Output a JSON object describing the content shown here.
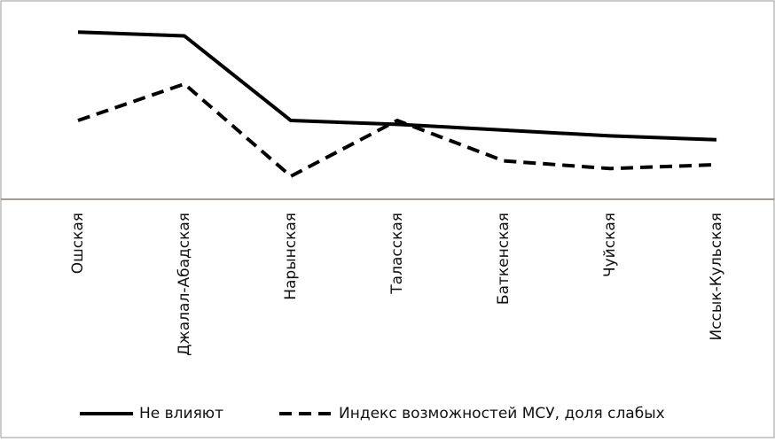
{
  "chart_data": {
    "type": "line",
    "categories": [
      "Ошская",
      "Джалал-Абадская",
      "Нарынская",
      "Таласская",
      "Баткенская",
      "Чуйская",
      "Иссык-Кульская"
    ],
    "series": [
      {
        "name": "Не влияют",
        "color": "#000000",
        "dash": false,
        "values": [
          87,
          85,
          41,
          39,
          36,
          33,
          31
        ]
      },
      {
        "name": "Индекс возможностей МСУ, доля слабых",
        "color": "#000000",
        "dash": true,
        "values": [
          41,
          60,
          12,
          41,
          20,
          16,
          18
        ]
      }
    ],
    "ylim": [
      0,
      100
    ]
  }
}
